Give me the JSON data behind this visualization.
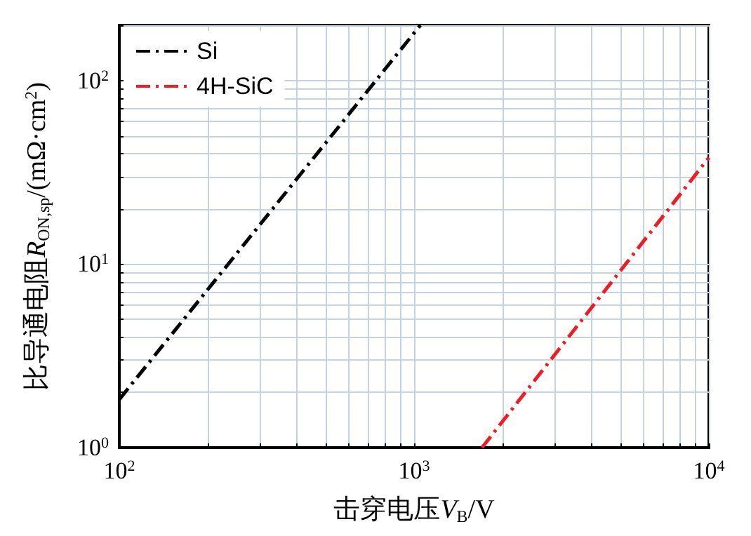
{
  "chart_data": {
    "type": "line",
    "xlabel": "击穿电压V$_{B}$/V",
    "ylabel": "比导通电阻R$_{ON,sp}$/(mΩ·cm$^{2}$)",
    "log": "xy",
    "grid": true,
    "legend": "top left",
    "line_style": "dashed",
    "marker": "none",
    "xlim": [
      100,
      10000
    ],
    "ylim": [
      1,
      200
    ],
    "xticks": [
      {
        "value": 100,
        "label": "10$^{2}$"
      },
      {
        "value": 200,
        "label": null
      },
      {
        "value": 300,
        "label": null
      },
      {
        "value": 400,
        "label": null
      },
      {
        "value": 500,
        "label": null
      },
      {
        "value": 600,
        "label": null
      },
      {
        "value": 700,
        "label": null
      },
      {
        "value": 800,
        "label": null
      },
      {
        "value": 900,
        "label": null
      },
      {
        "value": 1000,
        "label": "10$^{3}$"
      },
      {
        "value": 2000,
        "label": null
      },
      {
        "value": 3000,
        "label": null
      },
      {
        "value": 4000,
        "label": null
      },
      {
        "value": 5000,
        "label": null
      },
      {
        "value": 6000,
        "label": null
      },
      {
        "value": 7000,
        "label": null
      },
      {
        "value": 8000,
        "label": null
      },
      {
        "value": 9000,
        "label": null
      },
      {
        "value": 10000,
        "label": "10$^{4}$"
      }
    ],
    "yticks": [
      {
        "value": 1,
        "label": "10$^{0}$"
      },
      {
        "value": 2,
        "label": null
      },
      {
        "value": 3,
        "label": null
      },
      {
        "value": 4,
        "label": null
      },
      {
        "value": 5,
        "label": null
      },
      {
        "value": 6,
        "label": null
      },
      {
        "value": 7,
        "label": null
      },
      {
        "value": 8,
        "label": null
      },
      {
        "value": 9,
        "label": null
      },
      {
        "value": 10,
        "label": "10$^{1}$"
      },
      {
        "value": 20,
        "label": null
      },
      {
        "value": 30,
        "label": null
      },
      {
        "value": 40,
        "label": null
      },
      {
        "value": 50,
        "label": null
      },
      {
        "value": 60,
        "label": null
      },
      {
        "value": 70,
        "label": null
      },
      {
        "value": 80,
        "label": null
      },
      {
        "value": 90,
        "label": null
      },
      {
        "value": 100,
        "label": "10$^{2}$"
      },
      {
        "value": 200,
        "label": null
      }
    ],
    "series": [
      {
        "name": "Si",
        "color": "#000000",
        "x": [
          100,
          1050
        ],
        "values": [
          1.83,
          200
        ]
      },
      {
        "name": "4H-SiC",
        "color": "#ee1c25",
        "x": [
          1700,
          10000
        ],
        "values": [
          1,
          38
        ]
      }
    ]
  }
}
